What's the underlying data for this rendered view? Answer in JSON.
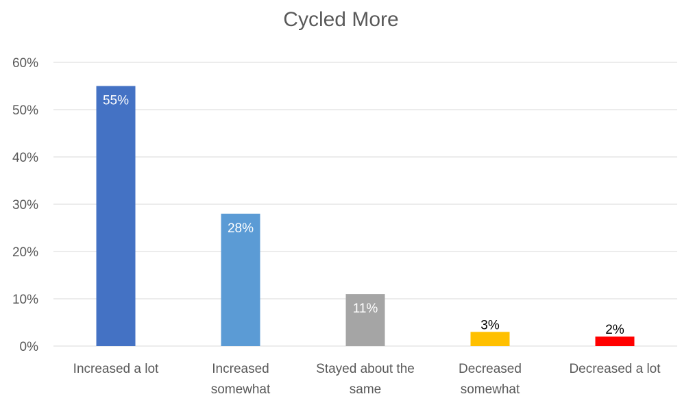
{
  "chart_data": {
    "type": "bar",
    "title": "Cycled More",
    "xlabel": "",
    "ylabel": "",
    "ylim": [
      0,
      60
    ],
    "yticks": [
      "0%",
      "10%",
      "20%",
      "30%",
      "40%",
      "50%",
      "60%"
    ],
    "grid": true,
    "legend": "none",
    "categories": [
      [
        "Increased a lot"
      ],
      [
        "Increased",
        "somewhat"
      ],
      [
        "Stayed about the",
        "same"
      ],
      [
        "Decreased",
        "somewhat"
      ],
      [
        "Decreased a lot"
      ]
    ],
    "values": [
      55,
      28,
      11,
      3,
      2
    ],
    "data_labels": [
      "55%",
      "28%",
      "11%",
      "3%",
      "2%"
    ],
    "colors": [
      "#4472c4",
      "#5b9bd5",
      "#a5a5a5",
      "#ffc000",
      "#ff0000"
    ],
    "label_colors": [
      "#ffffff",
      "#ffffff",
      "#ffffff",
      "#000000",
      "#000000"
    ]
  }
}
